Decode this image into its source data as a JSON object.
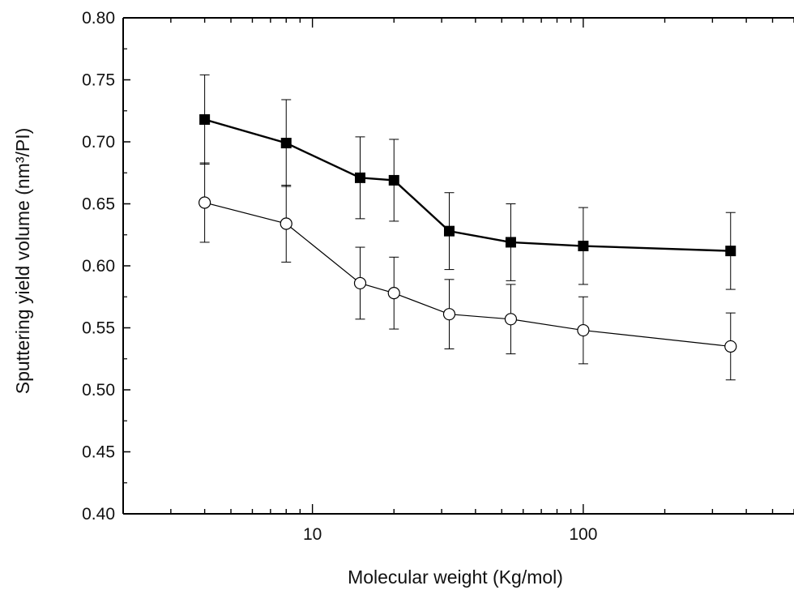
{
  "chart_data": {
    "type": "scatter",
    "xscale": "log",
    "xlim": [
      2,
      600
    ],
    "ylim": [
      0.4,
      0.8
    ],
    "xlabel": "Molecular weight (Kg/mol)",
    "ylabel": "Sputtering yield volume (nm³/PI)",
    "xticks": [
      {
        "value": 10,
        "label": "10"
      },
      {
        "value": 100,
        "label": "100"
      }
    ],
    "yticks": [
      {
        "value": 0.4,
        "label": "0.40"
      },
      {
        "value": 0.45,
        "label": "0.45"
      },
      {
        "value": 0.5,
        "label": "0.50"
      },
      {
        "value": 0.55,
        "label": "0.55"
      },
      {
        "value": 0.6,
        "label": "0.60"
      },
      {
        "value": 0.65,
        "label": "0.65"
      },
      {
        "value": 0.7,
        "label": "0.70"
      },
      {
        "value": 0.75,
        "label": "0.75"
      },
      {
        "value": 0.8,
        "label": "0.80"
      }
    ],
    "grid": false,
    "series": [
      {
        "marker": "filled-square",
        "color": "#000000",
        "x": [
          4,
          8,
          15,
          20,
          32,
          54,
          100,
          350
        ],
        "y": [
          0.718,
          0.699,
          0.671,
          0.669,
          0.628,
          0.619,
          0.616,
          0.612
        ],
        "err": [
          0.036,
          0.035,
          0.033,
          0.033,
          0.031,
          0.031,
          0.031,
          0.031
        ]
      },
      {
        "marker": "open-circle",
        "color": "#000000",
        "x": [
          4,
          8,
          15,
          20,
          32,
          54,
          100,
          350
        ],
        "y": [
          0.651,
          0.634,
          0.586,
          0.578,
          0.561,
          0.557,
          0.548,
          0.535
        ],
        "err": [
          0.032,
          0.031,
          0.029,
          0.029,
          0.028,
          0.028,
          0.027,
          0.027
        ]
      }
    ]
  }
}
